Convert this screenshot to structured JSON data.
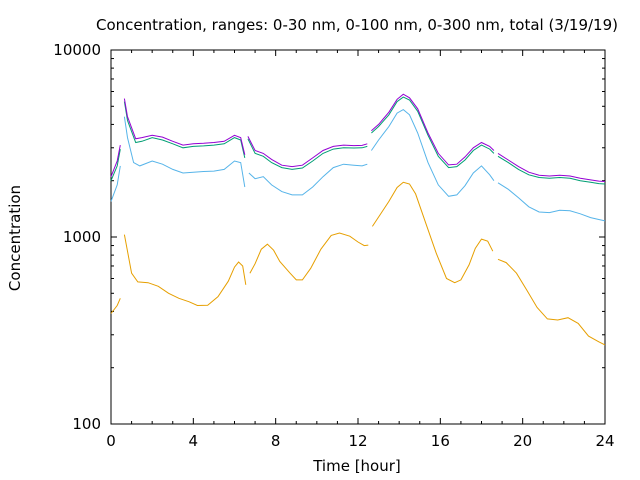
{
  "chart_data": {
    "type": "line",
    "title": "Concentration, ranges: 0-30 nm, 0-100 nm, 0-300 nm, total (3/19/19)",
    "xlabel": "Time [hour]",
    "ylabel": "Concentration",
    "xlim": [
      0,
      24
    ],
    "ylim": [
      100,
      10000
    ],
    "yscale": "log",
    "grid": false,
    "legend": "none",
    "xticks": [
      0,
      4,
      8,
      12,
      16,
      20,
      24
    ],
    "yticks": [
      100,
      1000,
      10000
    ],
    "xtick_labels": [
      "0",
      "4",
      "8",
      "12",
      "16",
      "20",
      "24"
    ],
    "ytick_labels": [
      "100",
      "1000",
      "10000"
    ],
    "series": [
      {
        "color": "#e69f00",
        "segments": [
          [
            [
              0.0,
              390
            ],
            [
              0.3,
              430
            ],
            [
              0.45,
              470
            ]
          ],
          [
            [
              0.65,
              1030
            ],
            [
              0.8,
              840
            ],
            [
              1.0,
              640
            ],
            [
              1.3,
              575
            ],
            [
              1.8,
              570
            ],
            [
              2.3,
              545
            ],
            [
              2.8,
              500
            ],
            [
              3.3,
              470
            ],
            [
              3.8,
              450
            ],
            [
              4.2,
              430
            ],
            [
              4.7,
              432
            ],
            [
              5.2,
              480
            ],
            [
              5.7,
              580
            ],
            [
              6.0,
              690
            ],
            [
              6.2,
              735
            ],
            [
              6.4,
              700
            ],
            [
              6.55,
              555
            ]
          ],
          [
            [
              6.75,
              640
            ],
            [
              7.0,
              720
            ],
            [
              7.3,
              860
            ],
            [
              7.6,
              915
            ],
            [
              7.9,
              850
            ],
            [
              8.2,
              740
            ],
            [
              8.7,
              640
            ],
            [
              9.0,
              590
            ],
            [
              9.3,
              590
            ],
            [
              9.7,
              680
            ],
            [
              10.2,
              860
            ],
            [
              10.7,
              1020
            ],
            [
              11.1,
              1050
            ],
            [
              11.6,
              1010
            ],
            [
              12.0,
              940
            ],
            [
              12.3,
              900
            ],
            [
              12.5,
              905
            ]
          ],
          [
            [
              12.7,
              1140
            ],
            [
              13.0,
              1280
            ],
            [
              13.5,
              1550
            ],
            [
              13.9,
              1840
            ],
            [
              14.2,
              1960
            ],
            [
              14.5,
              1920
            ],
            [
              14.8,
              1700
            ],
            [
              15.3,
              1180
            ],
            [
              15.8,
              820
            ],
            [
              16.3,
              600
            ],
            [
              16.7,
              570
            ],
            [
              17.0,
              590
            ],
            [
              17.4,
              710
            ],
            [
              17.7,
              870
            ],
            [
              18.0,
              975
            ],
            [
              18.3,
              950
            ],
            [
              18.55,
              840
            ]
          ],
          [
            [
              18.8,
              760
            ],
            [
              19.2,
              730
            ],
            [
              19.7,
              640
            ],
            [
              20.2,
              520
            ],
            [
              20.7,
              420
            ],
            [
              21.2,
              365
            ],
            [
              21.7,
              360
            ],
            [
              22.2,
              370
            ],
            [
              22.7,
              345
            ],
            [
              23.2,
              295
            ],
            [
              23.7,
              275
            ],
            [
              24.0,
              265
            ]
          ]
        ]
      },
      {
        "color": "#56b4e9",
        "segments": [
          [
            [
              0.0,
              1550
            ],
            [
              0.3,
              1900
            ],
            [
              0.45,
              2400
            ]
          ],
          [
            [
              0.65,
              4400
            ],
            [
              0.8,
              3400
            ],
            [
              1.1,
              2500
            ],
            [
              1.4,
              2400
            ],
            [
              2.0,
              2550
            ],
            [
              2.5,
              2450
            ],
            [
              3.0,
              2300
            ],
            [
              3.5,
              2200
            ],
            [
              4.0,
              2220
            ],
            [
              4.5,
              2240
            ],
            [
              5.0,
              2250
            ],
            [
              5.5,
              2300
            ],
            [
              6.0,
              2550
            ],
            [
              6.3,
              2500
            ],
            [
              6.5,
              1850
            ]
          ],
          [
            [
              6.7,
              2200
            ],
            [
              7.0,
              2050
            ],
            [
              7.4,
              2100
            ],
            [
              7.8,
              1900
            ],
            [
              8.3,
              1750
            ],
            [
              8.8,
              1680
            ],
            [
              9.3,
              1680
            ],
            [
              9.8,
              1850
            ],
            [
              10.3,
              2100
            ],
            [
              10.8,
              2350
            ],
            [
              11.3,
              2450
            ],
            [
              11.8,
              2420
            ],
            [
              12.2,
              2400
            ],
            [
              12.45,
              2450
            ]
          ],
          [
            [
              12.65,
              2900
            ],
            [
              13.0,
              3300
            ],
            [
              13.5,
              3900
            ],
            [
              13.9,
              4600
            ],
            [
              14.2,
              4800
            ],
            [
              14.5,
              4500
            ],
            [
              14.9,
              3600
            ],
            [
              15.4,
              2500
            ],
            [
              15.9,
              1900
            ],
            [
              16.4,
              1650
            ],
            [
              16.8,
              1680
            ],
            [
              17.2,
              1880
            ],
            [
              17.6,
              2200
            ],
            [
              18.0,
              2400
            ],
            [
              18.4,
              2150
            ],
            [
              18.6,
              2000
            ]
          ],
          [
            [
              18.8,
              1950
            ],
            [
              19.3,
              1800
            ],
            [
              19.8,
              1620
            ],
            [
              20.3,
              1450
            ],
            [
              20.8,
              1360
            ],
            [
              21.3,
              1350
            ],
            [
              21.8,
              1390
            ],
            [
              22.3,
              1380
            ],
            [
              22.8,
              1330
            ],
            [
              23.3,
              1270
            ],
            [
              23.7,
              1240
            ],
            [
              24.0,
              1220
            ]
          ]
        ]
      },
      {
        "color": "#009e73",
        "segments": [
          [
            [
              0.0,
              2000
            ],
            [
              0.3,
              2400
            ],
            [
              0.45,
              2950
            ]
          ],
          [
            [
              0.65,
              5300
            ],
            [
              0.8,
              4200
            ],
            [
              1.2,
              3200
            ],
            [
              1.5,
              3250
            ],
            [
              2.0,
              3400
            ],
            [
              2.5,
              3300
            ],
            [
              3.0,
              3150
            ],
            [
              3.5,
              3000
            ],
            [
              4.0,
              3050
            ],
            [
              4.5,
              3070
            ],
            [
              5.0,
              3100
            ],
            [
              5.5,
              3150
            ],
            [
              6.0,
              3400
            ],
            [
              6.3,
              3300
            ],
            [
              6.5,
              2650
            ]
          ],
          [
            [
              6.65,
              3350
            ],
            [
              7.0,
              2800
            ],
            [
              7.4,
              2700
            ],
            [
              7.8,
              2500
            ],
            [
              8.3,
              2350
            ],
            [
              8.8,
              2300
            ],
            [
              9.3,
              2340
            ],
            [
              9.8,
              2550
            ],
            [
              10.3,
              2800
            ],
            [
              10.8,
              2950
            ],
            [
              11.3,
              3000
            ],
            [
              11.8,
              2990
            ],
            [
              12.2,
              3000
            ],
            [
              12.45,
              3050
            ]
          ],
          [
            [
              12.65,
              3600
            ],
            [
              13.0,
              3900
            ],
            [
              13.5,
              4500
            ],
            [
              13.9,
              5300
            ],
            [
              14.2,
              5600
            ],
            [
              14.5,
              5400
            ],
            [
              14.9,
              4700
            ],
            [
              15.4,
              3500
            ],
            [
              15.9,
              2700
            ],
            [
              16.4,
              2350
            ],
            [
              16.8,
              2380
            ],
            [
              17.2,
              2580
            ],
            [
              17.6,
              2900
            ],
            [
              18.0,
              3100
            ],
            [
              18.4,
              2950
            ],
            [
              18.6,
              2800
            ]
          ],
          [
            [
              18.8,
              2700
            ],
            [
              19.3,
              2500
            ],
            [
              19.8,
              2300
            ],
            [
              20.3,
              2150
            ],
            [
              20.8,
              2080
            ],
            [
              21.3,
              2060
            ],
            [
              21.8,
              2080
            ],
            [
              22.3,
              2060
            ],
            [
              22.8,
              2000
            ],
            [
              23.3,
              1960
            ],
            [
              23.7,
              1930
            ],
            [
              24.0,
              1920
            ]
          ]
        ]
      },
      {
        "color": "#9400d3",
        "segments": [
          [
            [
              0.0,
              2100
            ],
            [
              0.3,
              2550
            ],
            [
              0.45,
              3100
            ]
          ],
          [
            [
              0.65,
              5500
            ],
            [
              0.8,
              4400
            ],
            [
              1.2,
              3350
            ],
            [
              1.5,
              3400
            ],
            [
              2.0,
              3500
            ],
            [
              2.5,
              3420
            ],
            [
              3.0,
              3250
            ],
            [
              3.5,
              3100
            ],
            [
              4.0,
              3150
            ],
            [
              4.5,
              3170
            ],
            [
              5.0,
              3200
            ],
            [
              5.5,
              3250
            ],
            [
              6.0,
              3500
            ],
            [
              6.3,
              3400
            ],
            [
              6.5,
              2750
            ]
          ],
          [
            [
              6.65,
              3450
            ],
            [
              7.0,
              2900
            ],
            [
              7.4,
              2800
            ],
            [
              7.8,
              2600
            ],
            [
              8.3,
              2420
            ],
            [
              8.8,
              2380
            ],
            [
              9.3,
              2420
            ],
            [
              9.8,
              2650
            ],
            [
              10.3,
              2900
            ],
            [
              10.8,
              3050
            ],
            [
              11.3,
              3100
            ],
            [
              11.8,
              3080
            ],
            [
              12.2,
              3090
            ],
            [
              12.45,
              3150
            ]
          ],
          [
            [
              12.65,
              3700
            ],
            [
              13.0,
              4000
            ],
            [
              13.5,
              4650
            ],
            [
              13.9,
              5450
            ],
            [
              14.2,
              5800
            ],
            [
              14.5,
              5550
            ],
            [
              14.9,
              4850
            ],
            [
              15.4,
              3600
            ],
            [
              15.9,
              2800
            ],
            [
              16.4,
              2430
            ],
            [
              16.8,
              2450
            ],
            [
              17.2,
              2680
            ],
            [
              17.6,
              3000
            ],
            [
              18.0,
              3200
            ],
            [
              18.4,
              3050
            ],
            [
              18.6,
              2900
            ]
          ],
          [
            [
              18.8,
              2800
            ],
            [
              19.3,
              2580
            ],
            [
              19.8,
              2380
            ],
            [
              20.3,
              2220
            ],
            [
              20.8,
              2140
            ],
            [
              21.3,
              2120
            ],
            [
              21.8,
              2140
            ],
            [
              22.3,
              2120
            ],
            [
              22.8,
              2060
            ],
            [
              23.3,
              2020
            ],
            [
              23.7,
              1990
            ],
            [
              24.0,
              1980
            ]
          ]
        ]
      }
    ]
  }
}
